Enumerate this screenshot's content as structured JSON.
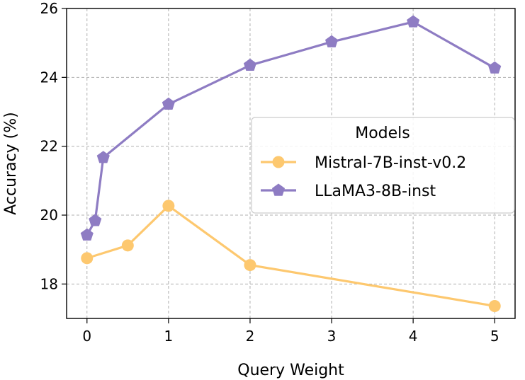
{
  "chart_data": {
    "type": "line",
    "xlabel": "Query Weight",
    "ylabel": "Accuracy (%)",
    "xlim": [
      -0.25,
      5.25
    ],
    "ylim": [
      17.0,
      26.0
    ],
    "xticks": [
      0,
      1,
      2,
      3,
      4,
      5
    ],
    "yticks": [
      18,
      20,
      22,
      24,
      26
    ],
    "grid": true,
    "legend": {
      "title": "Models",
      "placement": "center-right"
    },
    "series": [
      {
        "name": "Mistral-7B-inst-v0.2",
        "color": "#fdc86f",
        "marker": "circle",
        "x": [
          0,
          0.5,
          1,
          2,
          5
        ],
        "y": [
          18.75,
          19.12,
          20.27,
          18.55,
          17.36
        ]
      },
      {
        "name": "LLaMA3-8B-inst",
        "color": "#8e7cc3",
        "marker": "pentagon",
        "x": [
          0,
          0.1,
          0.2,
          1,
          2,
          3,
          4,
          5
        ],
        "y": [
          19.42,
          19.84,
          21.67,
          23.22,
          24.35,
          25.03,
          25.61,
          24.27
        ]
      }
    ]
  }
}
